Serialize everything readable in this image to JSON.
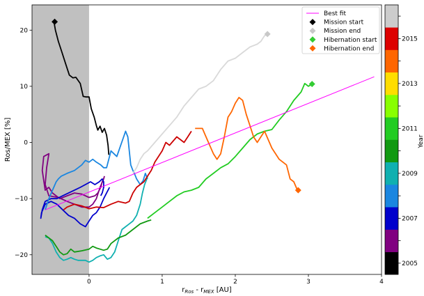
{
  "chart_data": {
    "type": "line",
    "xlabel_main": "r",
    "xlabel_sub1": "Ros",
    "xlabel_mid": " - r",
    "xlabel_sub2": "MEX",
    "xlabel_unit": "  [AU]",
    "ylabel": "Ros/MEX [%]",
    "colorbar_label": "Year",
    "xlim": [
      -0.78,
      4.0
    ],
    "ylim": [
      -23.5,
      24.5
    ],
    "xticks": [
      0,
      1,
      2,
      3,
      4
    ],
    "yticks": [
      -20,
      -10,
      0,
      10,
      20
    ],
    "shaded_region": {
      "x0": -0.78,
      "x1": 0,
      "color": "#c0c0c0"
    },
    "grid": false,
    "legend_position": "top-right",
    "legend": [
      {
        "label": "Best fit",
        "marker": "line",
        "color": "#ff00ff"
      },
      {
        "label": "Mission start",
        "marker": "diamond",
        "color": "#000000"
      },
      {
        "label": "Mission end",
        "marker": "diamond",
        "color": "#c8c8c8"
      },
      {
        "label": "Hibernation start",
        "marker": "diamond",
        "color": "#33cc33"
      },
      {
        "label": "Hibernation end",
        "marker": "diamond",
        "color": "#ff6600"
      }
    ],
    "best_fit": {
      "x": [
        -0.6,
        3.9
      ],
      "y": [
        -12.0,
        11.7
      ]
    },
    "markers": [
      {
        "name": "Mission start",
        "x": -0.47,
        "y": 21.5,
        "color": "#000000"
      },
      {
        "name": "Mission end",
        "x": 2.44,
        "y": 19.3,
        "color": "#c8c8c8"
      },
      {
        "name": "Hibernation start",
        "x": 3.05,
        "y": 10.4,
        "color": "#33cc33"
      },
      {
        "name": "Hibernation end",
        "x": 2.86,
        "y": -8.5,
        "color": "#ff6600"
      }
    ],
    "series": [
      {
        "color": "#000000",
        "x": [
          -0.48,
          -0.46,
          -0.42,
          -0.37,
          -0.32,
          -0.27,
          -0.22,
          -0.18,
          -0.12,
          -0.08,
          -0.04,
          0.0,
          0.03,
          0.07,
          0.1,
          0.12,
          0.15,
          0.18,
          0.21,
          0.24,
          0.26,
          0.27
        ],
        "y": [
          21.5,
          20.0,
          18.0,
          16.0,
          14.0,
          12.0,
          11.5,
          11.6,
          10.5,
          8.2,
          8.1,
          8.1,
          6.0,
          4.5,
          3.0,
          2.2,
          2.9,
          1.8,
          2.5,
          1.3,
          -0.5,
          -2.2
        ]
      },
      {
        "color": "#800080",
        "x": [
          0.2,
          0.15,
          0.1,
          0.05,
          0.0,
          -0.1,
          -0.2,
          -0.3,
          -0.42,
          -0.55,
          -0.6,
          -0.58,
          -0.55,
          -0.62,
          -0.64,
          -0.6,
          -0.55,
          -0.5,
          -0.4,
          -0.3,
          -0.2,
          -0.1,
          0.0,
          0.08,
          0.12,
          0.16,
          0.18,
          0.2,
          0.21
        ],
        "y": [
          -6.5,
          -8.0,
          -10.0,
          -11.0,
          -11.5,
          -11.5,
          -11.0,
          -10.5,
          -9.8,
          -9.5,
          -7.5,
          -4.5,
          -2.0,
          -2.5,
          -5.0,
          -8.5,
          -8.0,
          -9.0,
          -10.0,
          -9.5,
          -9.0,
          -9.2,
          -9.8,
          -9.5,
          -9.0,
          -8.0,
          -7.0,
          -6.5,
          -6.0
        ]
      },
      {
        "color": "#0000cc",
        "x": [
          0.28,
          0.24,
          0.2,
          0.15,
          0.1,
          0.05,
          0.0,
          -0.05,
          -0.12,
          -0.2,
          -0.28,
          -0.36,
          -0.44,
          -0.52,
          -0.6,
          -0.65,
          -0.66,
          -0.64,
          -0.6,
          -0.52,
          -0.44,
          -0.36,
          -0.28,
          -0.2,
          -0.12,
          -0.05,
          0.02,
          0.08,
          0.14,
          0.18,
          0.2,
          0.2,
          0.18,
          0.16
        ],
        "y": [
          -8.0,
          -9.0,
          -10.0,
          -11.5,
          -12.5,
          -13.0,
          -14.0,
          -15.0,
          -14.5,
          -13.5,
          -13.0,
          -12.0,
          -11.0,
          -10.5,
          -11.0,
          -12.5,
          -13.5,
          -12.0,
          -10.5,
          -10.0,
          -10.0,
          -9.5,
          -9.0,
          -8.5,
          -8.0,
          -7.5,
          -7.0,
          -7.5,
          -7.0,
          -6.5,
          -7.0,
          -8.0,
          -9.0,
          -9.5
        ]
      },
      {
        "color": "#1a86e0",
        "x": [
          -0.6,
          -0.55,
          -0.5,
          -0.45,
          -0.42,
          -0.38,
          -0.3,
          -0.2,
          -0.1,
          -0.05,
          0.0,
          0.05,
          0.1,
          0.16,
          0.2,
          0.24,
          0.3,
          0.34,
          0.38,
          0.42,
          0.46,
          0.5,
          0.53,
          0.55,
          0.57,
          0.6,
          0.62,
          0.65,
          0.7,
          0.74,
          0.77,
          0.8
        ],
        "y": [
          -12.0,
          -10.0,
          -8.5,
          -7.0,
          -6.5,
          -6.0,
          -5.5,
          -5.0,
          -4.0,
          -3.2,
          -3.5,
          -3.0,
          -3.5,
          -4.0,
          -4.5,
          -4.5,
          -1.5,
          -2.0,
          -2.5,
          -1.0,
          0.5,
          2.0,
          1.0,
          -1.5,
          -4.0,
          -5.0,
          -5.5,
          -6.5,
          -7.5,
          -6.8,
          -5.5,
          -6.5
        ]
      },
      {
        "color": "#10b0b0",
        "x": [
          -0.6,
          -0.55,
          -0.5,
          -0.45,
          -0.4,
          -0.35,
          -0.3,
          -0.25,
          -0.2,
          -0.15,
          -0.1,
          -0.05,
          0.0,
          0.05,
          0.1,
          0.15,
          0.2,
          0.25,
          0.3,
          0.35,
          0.4,
          0.45,
          0.5,
          0.55,
          0.6,
          0.65,
          0.7,
          0.73,
          0.76,
          0.79,
          0.8
        ],
        "y": [
          -16.8,
          -17.0,
          -18.0,
          -19.5,
          -20.5,
          -21.0,
          -20.8,
          -20.5,
          -20.8,
          -21.0,
          -21.0,
          -21.0,
          -21.3,
          -21.0,
          -20.5,
          -20.2,
          -20.0,
          -20.8,
          -20.5,
          -19.5,
          -17.5,
          -15.5,
          -15.0,
          -14.5,
          -14.0,
          -13.0,
          -11.0,
          -9.0,
          -7.5,
          -6.5,
          -6.0
        ]
      },
      {
        "color": "#119911",
        "x": [
          -0.6,
          -0.5,
          -0.45,
          -0.4,
          -0.35,
          -0.3,
          -0.25,
          -0.2,
          -0.1,
          0.0,
          0.05,
          0.1,
          0.15,
          0.2,
          0.25,
          0.3,
          0.4,
          0.5,
          0.6,
          0.7,
          0.8,
          0.85
        ],
        "y": [
          -16.5,
          -17.5,
          -18.5,
          -19.5,
          -20.0,
          -19.8,
          -19.0,
          -19.5,
          -19.3,
          -19.0,
          -18.5,
          -18.8,
          -19.0,
          -19.2,
          -19.0,
          -18.0,
          -17.0,
          -16.5,
          -15.5,
          -14.5,
          -14.0,
          -13.8
        ]
      },
      {
        "color": "#22cc22",
        "x": [
          0.8,
          0.9,
          1.0,
          1.1,
          1.2,
          1.3,
          1.4,
          1.5,
          1.6,
          1.7,
          1.8,
          1.9,
          2.0,
          2.1,
          2.2,
          2.3,
          2.4,
          2.5,
          2.6,
          2.7,
          2.8,
          2.9,
          2.95,
          3.0,
          3.05
        ],
        "y": [
          -13.5,
          -12.5,
          -11.5,
          -10.5,
          -9.5,
          -8.8,
          -8.5,
          -8.0,
          -6.5,
          -5.5,
          -4.5,
          -3.8,
          -2.5,
          -1.0,
          0.5,
          1.5,
          2.0,
          2.3,
          4.0,
          5.5,
          7.5,
          9.0,
          10.5,
          10.0,
          10.4
        ]
      },
      {
        "color": "#cc0000",
        "x": [
          -0.35,
          -0.3,
          -0.2,
          -0.1,
          0.0,
          0.1,
          0.2,
          0.3,
          0.4,
          0.5,
          0.55,
          0.6,
          0.65,
          0.7,
          0.75,
          0.8,
          0.85,
          0.9,
          1.0,
          1.05,
          1.1,
          1.2,
          1.25,
          1.3,
          1.35,
          1.4
        ],
        "y": [
          -12.0,
          -11.5,
          -11.0,
          -11.3,
          -11.8,
          -11.5,
          -11.6,
          -11.0,
          -10.5,
          -10.8,
          -10.5,
          -9.0,
          -8.0,
          -7.5,
          -7.0,
          -6.0,
          -5.0,
          -3.5,
          -1.5,
          0.0,
          -0.5,
          1.0,
          0.5,
          0.0,
          1.0,
          2.0
        ]
      },
      {
        "color": "#ff6600",
        "x": [
          1.45,
          1.55,
          1.6,
          1.65,
          1.7,
          1.75,
          1.8,
          1.85,
          1.9,
          1.95,
          2.0,
          2.05,
          2.1,
          2.15,
          2.2,
          2.25,
          2.3,
          2.35,
          2.4,
          2.5,
          2.6,
          2.7,
          2.75,
          2.8,
          2.85
        ],
        "y": [
          2.5,
          2.5,
          1.0,
          -0.5,
          -2.0,
          -3.0,
          -2.0,
          1.0,
          4.5,
          5.5,
          7.0,
          8.0,
          7.5,
          5.0,
          3.0,
          1.0,
          0.0,
          1.0,
          2.0,
          -1.0,
          -3.0,
          -4.0,
          -6.5,
          -7.0,
          -8.5
        ]
      },
      {
        "color": "#d9d9d9",
        "x": [
          0.6,
          0.65,
          0.7,
          0.75,
          0.8,
          0.9,
          1.0,
          1.1,
          1.2,
          1.3,
          1.4,
          1.5,
          1.6,
          1.7,
          1.8,
          1.9,
          2.0,
          2.1,
          2.2,
          2.3,
          2.35,
          2.4,
          2.44
        ],
        "y": [
          -5.5,
          -4.5,
          -3.0,
          -2.0,
          -1.5,
          0.0,
          1.5,
          3.0,
          4.5,
          6.5,
          8.0,
          9.5,
          10.0,
          11.0,
          13.0,
          14.5,
          15.0,
          16.0,
          17.0,
          17.5,
          18.0,
          19.0,
          19.3
        ]
      }
    ],
    "colorbar": {
      "tick_labels": [
        "2005",
        "2007",
        "2009",
        "2011",
        "2013",
        "2015"
      ],
      "bands": [
        "#000000",
        "#800080",
        "#0000cc",
        "#1a86e0",
        "#10b0b0",
        "#119911",
        "#22cc22",
        "#88ff00",
        "#ffdd00",
        "#ff6600",
        "#dd0000",
        "#cccccc"
      ]
    }
  }
}
